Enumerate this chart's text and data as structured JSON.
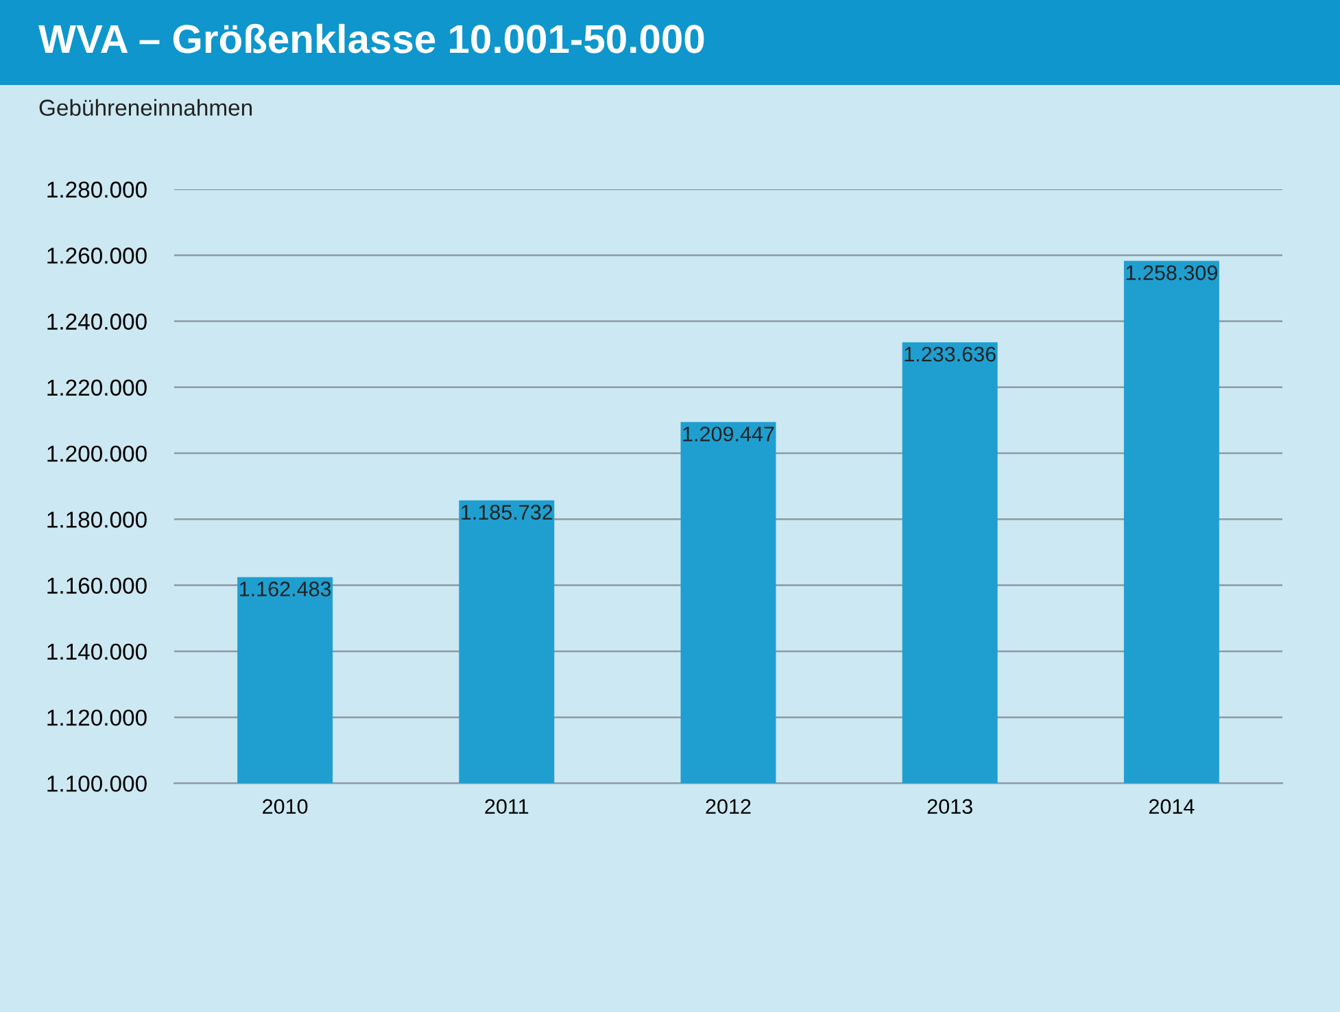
{
  "chart_data": {
    "type": "bar",
    "title": "WVA – Größenklasse 10.001-50.000",
    "ylabel": "Gebühreneinnahmen",
    "categories": [
      "2010",
      "2011",
      "2012",
      "2013",
      "2014"
    ],
    "values": [
      1162483,
      1185732,
      1209447,
      1233636,
      1258309
    ],
    "value_labels": [
      "1.162.483",
      "1.185.732",
      "1.209.447",
      "1.233.636",
      "1.258.309"
    ],
    "color": "#1f9fd0",
    "ylim": [
      1100000,
      1280000
    ],
    "yticks": [
      {
        "value": 1100000,
        "label": "1.100.000"
      },
      {
        "value": 1120000,
        "label": "1.120.000"
      },
      {
        "value": 1140000,
        "label": "1.140.000"
      },
      {
        "value": 1160000,
        "label": "1.160.000"
      },
      {
        "value": 1180000,
        "label": "1.180.000"
      },
      {
        "value": 1200000,
        "label": "1.200.000"
      },
      {
        "value": 1220000,
        "label": "1.220.000"
      },
      {
        "value": 1240000,
        "label": "1.240.000"
      },
      {
        "value": 1260000,
        "label": "1.260.000"
      },
      {
        "value": 1280000,
        "label": "1.280.000"
      }
    ],
    "grid": "y"
  }
}
